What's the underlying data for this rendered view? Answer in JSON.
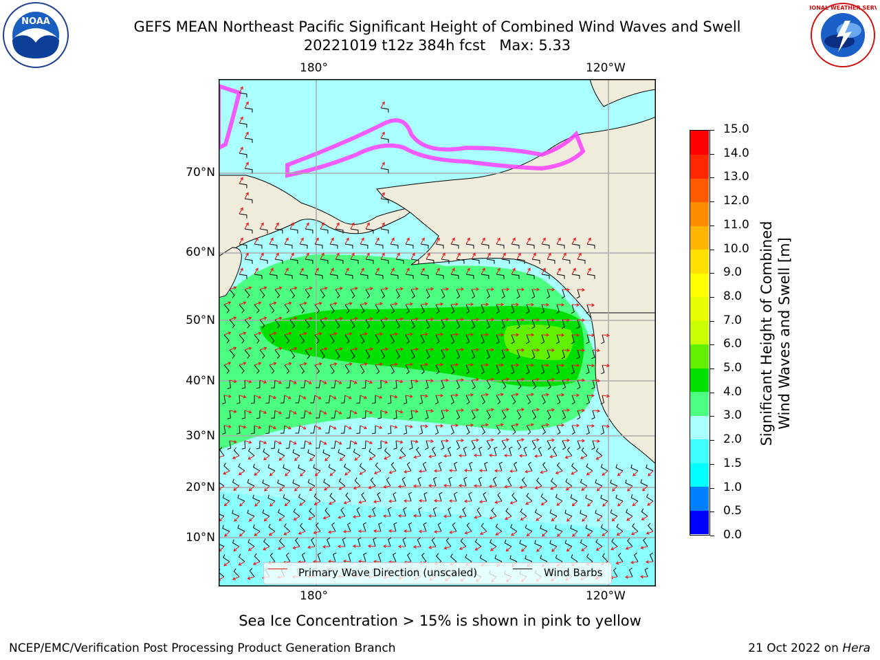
{
  "title": {
    "line1": "GEFS MEAN Northeast Pacific Significant Height of Combined Wind Waves and Swell",
    "line2": "20221019 t12z 384h fcst   Max: 5.33"
  },
  "logos": {
    "left": {
      "name": "noaa-logo",
      "text": "NOAA"
    },
    "right": {
      "name": "nws-logo",
      "text": "NATIONAL WEATHER SERVICE"
    }
  },
  "map": {
    "lon_labels": [
      "180°",
      "120°W"
    ],
    "lat_labels": [
      "70°N",
      "60°N",
      "50°N",
      "40°N",
      "30°N",
      "20°N",
      "10°N"
    ],
    "colors": {
      "land": "#efecdc",
      "ocean_low": "#aaffff",
      "grid": "#aaaaaa",
      "wave_arrow": "#e41a1c",
      "wind_barb": "#000000"
    }
  },
  "legend": {
    "wave": "Primary Wave Direction (unscaled)",
    "wind": "Wind Barbs"
  },
  "colorbar": {
    "label_line1": "Significant Height of Combined",
    "label_line2": "Wind Waves and Swell [m]",
    "ticks": [
      "0.0",
      "0.5",
      "1.0",
      "1.5",
      "2.0",
      "3.0",
      "4.0",
      "5.0",
      "6.0",
      "7.0",
      "8.0",
      "9.0",
      "10.0",
      "11.0",
      "12.0",
      "13.0",
      "14.0",
      "15.0"
    ],
    "colors": [
      "#0000ff",
      "#0080ff",
      "#00ffff",
      "#40ffff",
      "#aaffff",
      "#4cff80",
      "#00e000",
      "#60f000",
      "#c8ff00",
      "#e6ff00",
      "#ffff00",
      "#ffe000",
      "#ffb400",
      "#ff8c00",
      "#ff5a00",
      "#ff2800",
      "#ff0000"
    ]
  },
  "footnote": "Sea Ice Concentration > 15% is shown in pink to yellow",
  "credits": {
    "left": "NCEP/EMC/Verification Post Processing Product Generation Branch",
    "right_date": "21 Oct 2022 on",
    "right_system": "Hera"
  }
}
